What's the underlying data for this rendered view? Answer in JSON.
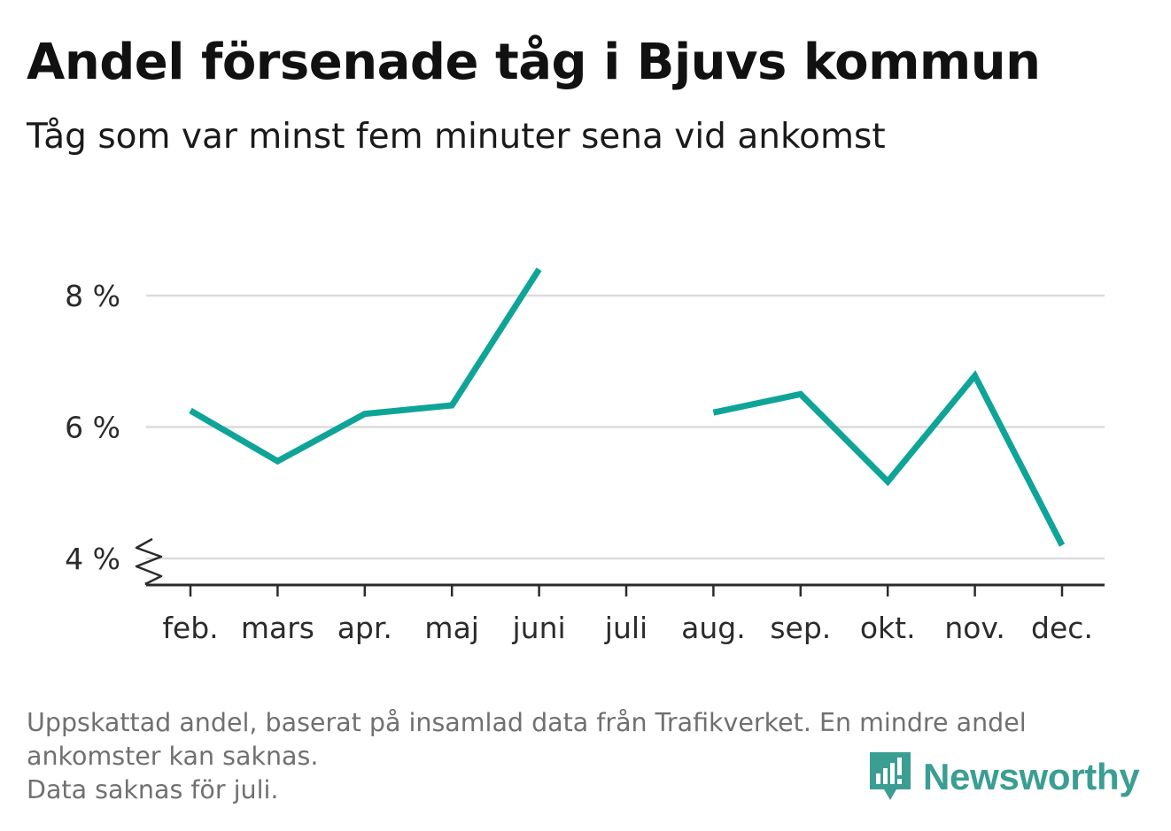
{
  "title": "Andel försenade tåg i Bjuvs kommun",
  "subtitle": "Tåg som var minst fem minuter sena vid ankomst",
  "footer": {
    "note_line1": "Uppskattad andel, baserat på insamlad data från Trafikverket. En mindre andel ankomster kan saknas.",
    "note_line2": "Data saknas för juli."
  },
  "brand": {
    "name": "Newsworthy",
    "icon": "newsworthy-logo-icon",
    "color": "#3a9e93"
  },
  "chart_data": {
    "type": "line",
    "categories": [
      "feb.",
      "mars",
      "apr.",
      "maj",
      "juni",
      "juli",
      "aug.",
      "sep.",
      "okt.",
      "nov.",
      "dec."
    ],
    "series": [
      {
        "values": [
          6.25,
          5.48,
          6.2,
          6.33,
          8.4,
          null,
          6.22,
          6.5,
          5.17,
          6.78,
          4.2
        ],
        "color": "#0fa498"
      }
    ],
    "yticks": [
      4,
      6,
      8
    ],
    "ytick_labels": [
      "4 %",
      "6 %",
      "8 %"
    ],
    "ylim": [
      4,
      8.6
    ],
    "y_axis_break": true,
    "grid": true,
    "xlabel": "",
    "ylabel": ""
  }
}
